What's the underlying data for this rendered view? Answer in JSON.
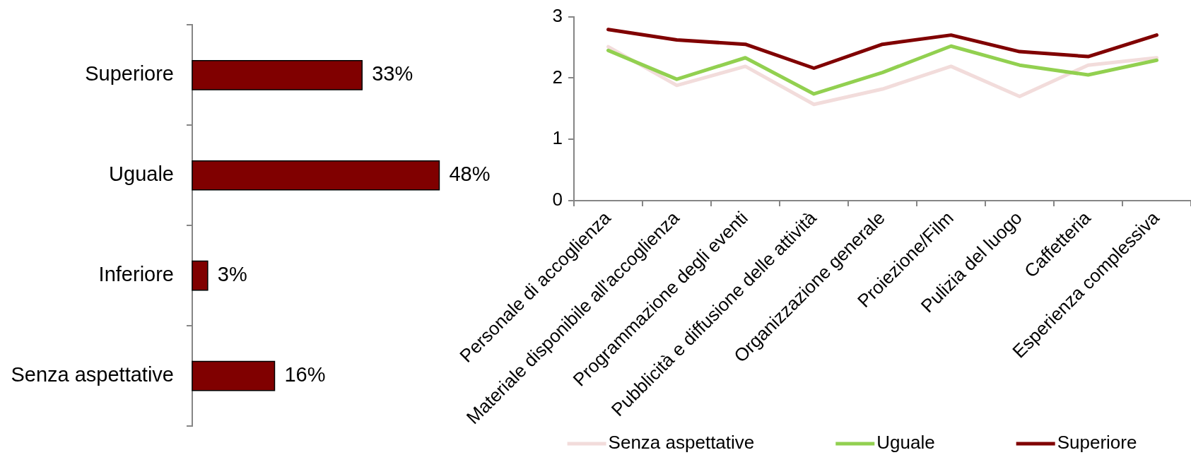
{
  "chart_data": [
    {
      "type": "bar",
      "orientation": "horizontal",
      "categories": [
        "Superiore",
        "Uguale",
        "Inferiore",
        "Senza aspettative"
      ],
      "values": [
        33,
        48,
        3,
        16
      ],
      "value_labels": [
        "33%",
        "48%",
        "3%",
        "16%"
      ],
      "color": "#800000"
    },
    {
      "type": "line",
      "categories": [
        "Personale di accoglienza",
        "Materiale disponibile all'accoglienza",
        "Programmazione degli eventi",
        "Pubblicità e diffusione delle attività",
        "Organizzazione generale",
        "Proiezione/Film",
        "Pulizia del luogo",
        "Caffetteria",
        "Esperienza complessiva"
      ],
      "series": [
        {
          "name": "Senza aspettative",
          "color": "#f2dcdb",
          "values": [
            2.51,
            1.88,
            2.19,
            1.57,
            1.82,
            2.19,
            1.7,
            2.21,
            2.33
          ]
        },
        {
          "name": "Uguale",
          "color": "#92d050",
          "values": [
            2.45,
            1.98,
            2.33,
            1.74,
            2.09,
            2.52,
            2.21,
            2.05,
            2.29
          ]
        },
        {
          "name": "Superiore",
          "color": "#800000",
          "values": [
            2.79,
            2.62,
            2.55,
            2.16,
            2.55,
            2.7,
            2.43,
            2.35,
            2.7
          ]
        }
      ],
      "ylim": [
        0,
        3
      ],
      "yticks": [
        0,
        1,
        2,
        3
      ],
      "legend": "bottom",
      "marker": "none"
    }
  ]
}
